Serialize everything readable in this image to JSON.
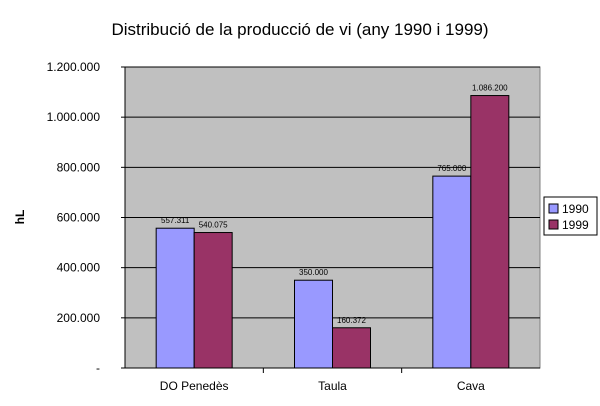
{
  "chart_data": {
    "type": "bar",
    "title": "Distribució de la producció de vi (any 1990 i 1999)",
    "ylabel": "hL",
    "xlabel": "",
    "categories": [
      "DO Penedès",
      "Taula",
      "Cava"
    ],
    "series": [
      {
        "name": "1990",
        "values": [
          557311,
          350000,
          765000
        ],
        "labels": [
          "557.311",
          "350.000",
          "765.000"
        ],
        "color": "#9999ff"
      },
      {
        "name": "1999",
        "values": [
          540075,
          160372,
          1086200
        ],
        "labels": [
          "540.075",
          "160.372",
          "1.086.200"
        ],
        "color": "#993366"
      }
    ],
    "ylim": [
      0,
      1200000
    ],
    "yticks": [
      0,
      200000,
      400000,
      600000,
      800000,
      1000000,
      1200000
    ],
    "ytick_labels": [
      "-",
      "200.000",
      "400.000",
      "600.000",
      "800.000",
      "1.000.000",
      "1.200.000"
    ],
    "grid": true,
    "legend_position": "right",
    "plot_background": "#c0c0c0"
  }
}
